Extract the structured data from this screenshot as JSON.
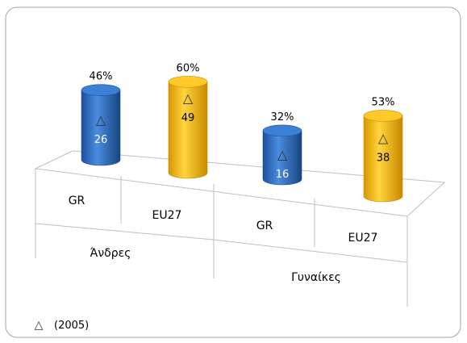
{
  "chart_data": {
    "type": "bar",
    "title": "",
    "xlabel": "",
    "ylabel": "",
    "groups": [
      "Άνδρες",
      "Γυναίκες"
    ],
    "categories": [
      "GR",
      "EU27",
      "GR",
      "EU27"
    ],
    "values": [
      46,
      60,
      32,
      53
    ],
    "value_labels": [
      "46%",
      "60%",
      "32%",
      "53%"
    ],
    "inner_labels": [
      "26",
      "49",
      "16",
      "38"
    ],
    "markers_2005": [
      26,
      49,
      16,
      38
    ],
    "colors": [
      "#2f6ec2",
      "#f5b800",
      "#2f6ec2",
      "#f5b800"
    ],
    "legend": {
      "symbol": "△",
      "label": "(2005)",
      "position": "bottom-left"
    }
  }
}
